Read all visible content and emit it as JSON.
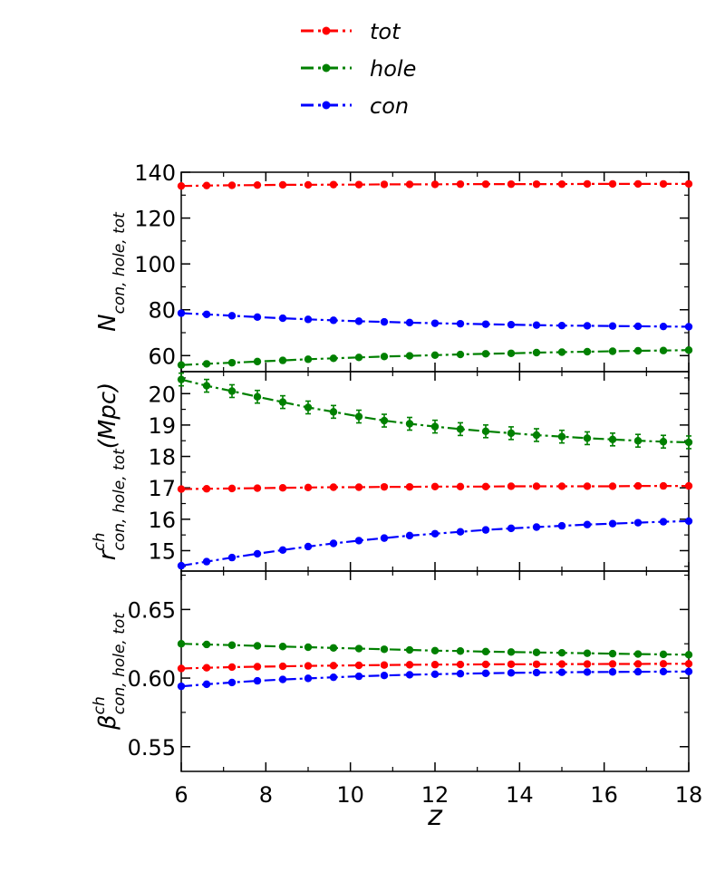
{
  "chart_data": {
    "type": "line",
    "xlabel": "z",
    "xlim": [
      6,
      18
    ],
    "xticks": [
      6,
      8,
      10,
      12,
      14,
      16,
      18
    ],
    "x": [
      6.0,
      6.6,
      7.2,
      7.8,
      8.4,
      9.0,
      9.6,
      10.2,
      10.8,
      11.4,
      12.0,
      12.6,
      13.2,
      13.8,
      14.4,
      15.0,
      15.6,
      16.2,
      16.8,
      17.4,
      18.0
    ],
    "legend": {
      "placement": "top-center",
      "entries": [
        {
          "name": "tot",
          "color": "#ff0000"
        },
        {
          "name": "hole",
          "color": "#008000"
        },
        {
          "name": "con",
          "color": "#0000ff"
        }
      ]
    },
    "panels": [
      {
        "id": "N",
        "ylabel_main": "N",
        "ylabel_sub": "con, hole, tot",
        "ylabel_sup": "",
        "ylabel_suffix": "",
        "ylim": [
          53,
          140
        ],
        "yticks": [
          60,
          80,
          100,
          120,
          140
        ],
        "series": [
          {
            "name": "tot",
            "color": "#ff0000",
            "values": [
              134.0,
              134.2,
              134.3,
              134.4,
              134.5,
              134.5,
              134.6,
              134.6,
              134.7,
              134.7,
              134.7,
              134.8,
              134.8,
              134.8,
              134.8,
              134.8,
              134.9,
              134.9,
              134.9,
              134.9,
              134.9
            ]
          },
          {
            "name": "hole",
            "color": "#008000",
            "values": [
              55.9,
              56.4,
              56.9,
              57.4,
              57.9,
              58.4,
              58.8,
              59.2,
              59.6,
              59.9,
              60.2,
              60.5,
              60.8,
              61.0,
              61.3,
              61.5,
              61.7,
              61.9,
              62.1,
              62.2,
              62.4
            ]
          },
          {
            "name": "con",
            "color": "#0000ff",
            "values": [
              78.5,
              78.0,
              77.4,
              76.8,
              76.3,
              75.8,
              75.4,
              75.0,
              74.7,
              74.4,
              74.1,
              73.9,
              73.7,
              73.5,
              73.3,
              73.1,
              73.0,
              72.9,
              72.8,
              72.7,
              72.6
            ]
          }
        ]
      },
      {
        "id": "r",
        "ylabel_main": "r",
        "ylabel_sub": "con, hole, tot",
        "ylabel_sup": "ch",
        "ylabel_suffix": "(Mpc)",
        "ylim": [
          14.35,
          20.7
        ],
        "yticks": [
          15,
          16,
          17,
          18,
          19,
          20
        ],
        "series": [
          {
            "name": "tot",
            "color": "#ff0000",
            "values": [
              16.96,
              16.97,
              16.98,
              16.99,
              17.0,
              17.01,
              17.02,
              17.02,
              17.03,
              17.03,
              17.04,
              17.04,
              17.04,
              17.05,
              17.05,
              17.05,
              17.05,
              17.05,
              17.06,
              17.06,
              17.06
            ]
          },
          {
            "name": "hole",
            "color": "#008000",
            "values": [
              20.45,
              20.25,
              20.08,
              19.9,
              19.73,
              19.56,
              19.42,
              19.27,
              19.14,
              19.04,
              18.95,
              18.87,
              18.8,
              18.74,
              18.68,
              18.63,
              18.58,
              18.54,
              18.5,
              18.47,
              18.45
            ]
          },
          {
            "name": "con",
            "color": "#0000ff",
            "values": [
              14.52,
              14.65,
              14.78,
              14.9,
              15.02,
              15.13,
              15.23,
              15.32,
              15.4,
              15.48,
              15.54,
              15.6,
              15.66,
              15.71,
              15.75,
              15.79,
              15.83,
              15.86,
              15.89,
              15.92,
              15.94
            ]
          }
        ]
      },
      {
        "id": "beta",
        "ylabel_main": "β",
        "ylabel_sub": "con, hole, tot",
        "ylabel_sup": "ch",
        "ylabel_suffix": "",
        "ylim": [
          0.532,
          0.678
        ],
        "yticks": [
          0.55,
          0.6,
          0.65
        ],
        "series": [
          {
            "name": "tot",
            "color": "#ff0000",
            "values": [
              0.607,
              0.6075,
              0.608,
              0.6083,
              0.6086,
              0.6089,
              0.6091,
              0.6093,
              0.6095,
              0.6097,
              0.6098,
              0.6099,
              0.61,
              0.6101,
              0.6101,
              0.6102,
              0.6102,
              0.6103,
              0.6103,
              0.6104,
              0.6104
            ]
          },
          {
            "name": "hole",
            "color": "#008000",
            "values": [
              0.625,
              0.6245,
              0.624,
              0.6235,
              0.623,
              0.6225,
              0.622,
              0.6215,
              0.621,
              0.6205,
              0.62,
              0.6197,
              0.6193,
              0.619,
              0.6187,
              0.6184,
              0.6181,
              0.6178,
              0.6175,
              0.6173,
              0.617
            ]
          },
          {
            "name": "con",
            "color": "#0000ff",
            "values": [
              0.594,
              0.5955,
              0.5968,
              0.598,
              0.599,
              0.5998,
              0.6006,
              0.6013,
              0.6019,
              0.6024,
              0.6028,
              0.6032,
              0.6035,
              0.6038,
              0.604,
              0.6042,
              0.6044,
              0.6045,
              0.6046,
              0.6047,
              0.6048
            ]
          }
        ]
      }
    ]
  }
}
